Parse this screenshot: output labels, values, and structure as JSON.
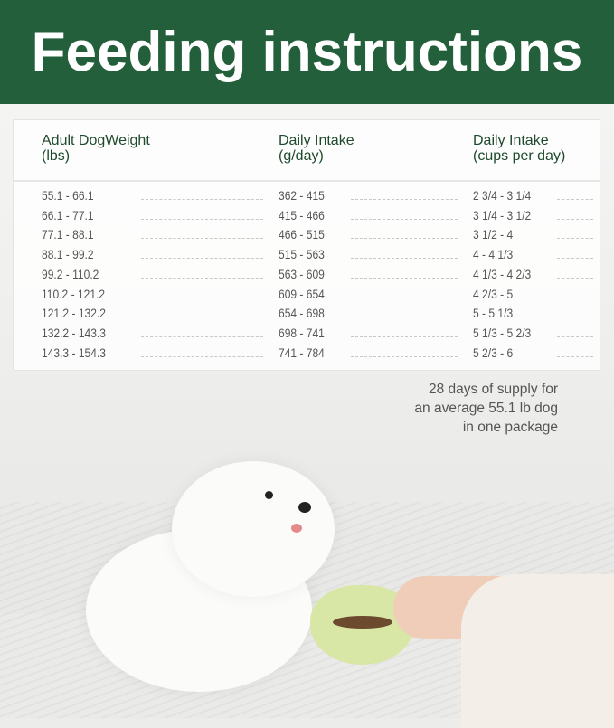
{
  "title": "Feeding instructions",
  "table": {
    "headers": [
      {
        "line1": "Adult DogWeight",
        "line2": "(lbs)"
      },
      {
        "line1": "Daily Intake",
        "line2": "(g/day)"
      },
      {
        "line1": "Daily Intake",
        "line2": "(cups per day)"
      }
    ],
    "rows": [
      [
        "55.1 - 66.1",
        "362 - 415",
        "2 3/4 - 3 1/4"
      ],
      [
        "66.1 - 77.1",
        "415 - 466",
        "3 1/4 - 3 1/2"
      ],
      [
        "77.1 - 88.1",
        "466 - 515",
        "3 1/2 - 4"
      ],
      [
        "88.1 - 99.2",
        "515 - 563",
        "4 - 4 1/3"
      ],
      [
        "99.2 - 110.2",
        "563 - 609",
        "4 1/3 - 4 2/3"
      ],
      [
        "110.2 - 121.2",
        "609 - 654",
        "4 2/3 - 5"
      ],
      [
        "121.2 - 132.2",
        "654 - 698",
        "5 - 5 1/3"
      ],
      [
        "132.2 - 143.3",
        "698 - 741",
        "5 1/3 - 5 2/3"
      ],
      [
        "143.3 - 154.3",
        "741 - 784",
        "5 2/3 - 6"
      ]
    ]
  },
  "caption": [
    "28 days of supply for",
    "an average 55.1 lb dog",
    "in one package"
  ],
  "colors": {
    "header_bg": "#235f3b",
    "header_text": "#1e4a2b",
    "bowl": "#d8e6a6"
  }
}
